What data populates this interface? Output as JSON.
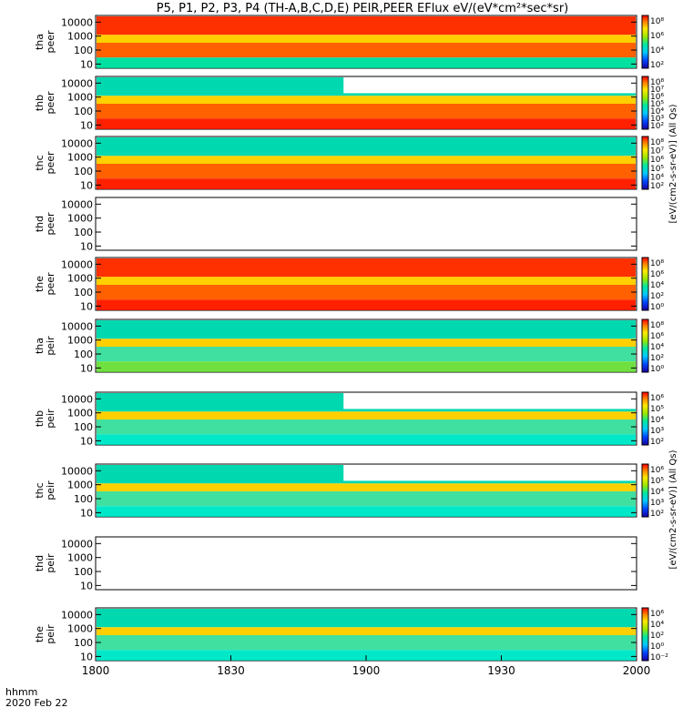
{
  "title": "P5, P1, P2, P3, P4 (TH-A,B,C,D,E) PEIR,PEER EFlux eV/(eV*cm²*sec*sr)",
  "footer": {
    "label1": "hhmm",
    "label2": "2020 Feb 22"
  },
  "colors": {
    "axis": "#000000",
    "background": "#ffffff",
    "bar_red": "#ff0000",
    "bar_yellow": "#ffff00"
  },
  "chart_data": {
    "type": "heatmap",
    "x_ticks": [
      "1800",
      "1830",
      "1900",
      "1930",
      "2000"
    ],
    "y_ticks": [
      "10",
      "100",
      "1000",
      "10000"
    ],
    "x_range": [
      "18:00",
      "20:00"
    ],
    "y_scale": "log",
    "y_range": [
      5,
      30000
    ],
    "colorbar_label_top": "[eV/(cm2-s-sr-eV)] (All Qs)",
    "colorbar_label_bottom": "[eV/(cm2-s-sr-eV)] (All Qs)",
    "panels": [
      {
        "probe": "tha",
        "species": "peer",
        "ylabel1": "tha",
        "ylabel2": "peer",
        "colorbar_ticks": [
          "10²",
          "10⁴",
          "10⁶",
          "10⁸"
        ],
        "has_data": true,
        "data_gap_after": "",
        "low_level_band": "green-blue",
        "peak_flux": "1e8"
      },
      {
        "probe": "thb",
        "species": "peer",
        "ylabel1": "thb",
        "ylabel2": "peer",
        "colorbar_ticks": [
          "10²",
          "10³",
          "10⁴",
          "10⁵",
          "10⁶",
          "10⁷",
          "10⁸"
        ],
        "has_data": true,
        "data_gap_after": "1855",
        "low_level_band": "red",
        "peak_flux": "1e8"
      },
      {
        "probe": "thc",
        "species": "peer",
        "ylabel1": "thc",
        "ylabel2": "peer",
        "colorbar_ticks": [
          "10²",
          "10⁴",
          "10⁵",
          "10⁶",
          "10⁷",
          "10⁸"
        ],
        "has_data": true,
        "data_gap_after": "",
        "low_level_band": "red",
        "peak_flux": "1e8"
      },
      {
        "probe": "thd",
        "species": "peer",
        "ylabel1": "thd",
        "ylabel2": "peer",
        "colorbar_ticks": [],
        "has_data": false,
        "data_gap_after": "",
        "low_level_band": "",
        "peak_flux": ""
      },
      {
        "probe": "the",
        "species": "peer",
        "ylabel1": "the",
        "ylabel2": "peer",
        "colorbar_ticks": [
          "10⁰",
          "10²",
          "10⁴",
          "10⁶",
          "10⁸"
        ],
        "has_data": true,
        "data_gap_after": "",
        "low_level_band": "red",
        "peak_flux": "1e8"
      },
      {
        "probe": "tha",
        "species": "peir",
        "ylabel1": "tha",
        "ylabel2": "peir",
        "colorbar_ticks": [
          "10⁰",
          "10²",
          "10⁴",
          "10⁶",
          "10⁸"
        ],
        "has_data": true,
        "data_gap_after": "",
        "low_level_band": "green",
        "peak_flux": "1e6"
      },
      {
        "probe": "thb",
        "species": "peir",
        "ylabel1": "thb",
        "ylabel2": "peir",
        "colorbar_ticks": [
          "10²",
          "10³",
          "10⁴",
          "10⁵",
          "10⁶"
        ],
        "has_data": true,
        "data_gap_after": "1855",
        "low_level_band": "cyan",
        "peak_flux": "1e6"
      },
      {
        "probe": "thc",
        "species": "peir",
        "ylabel1": "thc",
        "ylabel2": "peir",
        "colorbar_ticks": [
          "10²",
          "10³",
          "10⁴",
          "10⁵",
          "10⁶"
        ],
        "has_data": true,
        "data_gap_after": "1855",
        "low_level_band": "cyan",
        "peak_flux": "1e6"
      },
      {
        "probe": "thd",
        "species": "peir",
        "ylabel1": "thd",
        "ylabel2": "peir",
        "colorbar_ticks": [],
        "has_data": false,
        "data_gap_after": "",
        "low_level_band": "",
        "peak_flux": ""
      },
      {
        "probe": "the",
        "species": "peir",
        "ylabel1": "the",
        "ylabel2": "peir",
        "colorbar_ticks": [
          "10⁻²",
          "10⁰",
          "10²",
          "10⁴",
          "10⁶"
        ],
        "has_data": true,
        "data_gap_after": "",
        "low_level_band": "cyan",
        "peak_flux": "1e6"
      }
    ]
  }
}
